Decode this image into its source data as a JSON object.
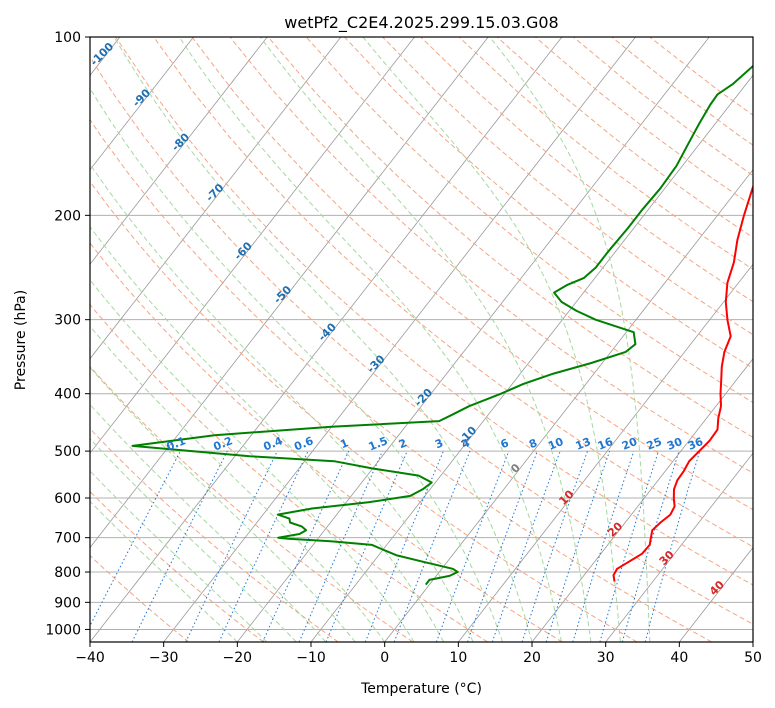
{
  "chart_data": {
    "type": "skew-t",
    "title": "wetPf2_C2E4.2025.299.15.03.G08",
    "xlabel": "Temperature (°C)",
    "ylabel": "Pressure (hPa)",
    "xlim": [
      -40,
      50
    ],
    "ylim": [
      1050,
      100
    ],
    "y_scale": "log",
    "grid": true,
    "x_ticks": [
      "−40",
      "−30",
      "−20",
      "−10",
      "0",
      "10",
      "20",
      "30",
      "40",
      "50"
    ],
    "x_tick_values": [
      -40,
      -30,
      -20,
      -10,
      0,
      10,
      20,
      30,
      40,
      50
    ],
    "y_ticks": [
      "100",
      "200",
      "300",
      "400",
      "500",
      "600",
      "700",
      "800",
      "900",
      "1000"
    ],
    "y_tick_values": [
      100,
      200,
      300,
      400,
      500,
      600,
      700,
      800,
      900,
      1000
    ],
    "series": [
      {
        "color": "#ff0000",
        "points": [
          [
            830,
            24.8
          ],
          [
            810,
            24.0
          ],
          [
            790,
            23.8
          ],
          [
            770,
            24.6
          ],
          [
            745,
            25.6
          ],
          [
            720,
            25.7
          ],
          [
            700,
            25.1
          ],
          [
            680,
            24.5
          ],
          [
            660,
            24.8
          ],
          [
            640,
            25.3
          ],
          [
            620,
            25.0
          ],
          [
            600,
            24.0
          ],
          [
            580,
            23.1
          ],
          [
            560,
            22.6
          ],
          [
            540,
            22.5
          ],
          [
            520,
            22.2
          ],
          [
            500,
            22.5
          ],
          [
            480,
            22.8
          ],
          [
            460,
            22.7
          ],
          [
            440,
            21.6
          ],
          [
            420,
            20.7
          ],
          [
            400,
            19.3
          ],
          [
            380,
            18.0
          ],
          [
            360,
            16.6
          ],
          [
            340,
            15.4
          ],
          [
            320,
            14.6
          ],
          [
            300,
            12.4
          ],
          [
            280,
            10.3
          ],
          [
            260,
            8.5
          ],
          [
            240,
            7.2
          ],
          [
            220,
            5.3
          ],
          [
            200,
            3.6
          ],
          [
            180,
            1.9
          ],
          [
            160,
            0.2
          ],
          [
            140,
            -0.8
          ],
          [
            130,
            -1.0
          ],
          [
            120,
            -0.7
          ],
          [
            113,
            0.0
          ],
          [
            108,
            0.5
          ],
          [
            100,
            0.9
          ]
        ]
      },
      {
        "color": "#008000",
        "points": [
          [
            840,
            -0.5
          ],
          [
            825,
            -0.5
          ],
          [
            812,
            1.8
          ],
          [
            800,
            2.5
          ],
          [
            790,
            1.5
          ],
          [
            770,
            -3.0
          ],
          [
            750,
            -7.5
          ],
          [
            730,
            -10.5
          ],
          [
            720,
            -12.0
          ],
          [
            710,
            -18.0
          ],
          [
            703,
            -24.0
          ],
          [
            700,
            -25.5
          ],
          [
            690,
            -23.0
          ],
          [
            680,
            -22.5
          ],
          [
            670,
            -23.5
          ],
          [
            660,
            -25.5
          ],
          [
            650,
            -26.0
          ],
          [
            640,
            -28.0
          ],
          [
            625,
            -24.0
          ],
          [
            610,
            -17.0
          ],
          [
            595,
            -12.0
          ],
          [
            580,
            -11.0
          ],
          [
            565,
            -10.5
          ],
          [
            550,
            -13.0
          ],
          [
            535,
            -20.0
          ],
          [
            520,
            -26.0
          ],
          [
            510,
            -38.0
          ],
          [
            490,
            -55.0
          ],
          [
            470,
            -45.0
          ],
          [
            455,
            -30.0
          ],
          [
            445,
            -16.0
          ],
          [
            435,
            -15.0
          ],
          [
            420,
            -13.5
          ],
          [
            400,
            -10.5
          ],
          [
            385,
            -8.5
          ],
          [
            370,
            -5.5
          ],
          [
            355,
            -1.5
          ],
          [
            340,
            2.0
          ],
          [
            330,
            2.5
          ],
          [
            315,
            1.0
          ],
          [
            308,
            -2.0
          ],
          [
            300,
            -5.5
          ],
          [
            290,
            -9.0
          ],
          [
            280,
            -12.0
          ],
          [
            270,
            -14.0
          ],
          [
            262,
            -13.0
          ],
          [
            255,
            -11.5
          ],
          [
            245,
            -11.0
          ],
          [
            230,
            -11.0
          ],
          [
            210,
            -10.8
          ],
          [
            195,
            -10.8
          ],
          [
            180,
            -10.6
          ],
          [
            165,
            -10.8
          ],
          [
            152,
            -11.5
          ],
          [
            140,
            -12.2
          ],
          [
            130,
            -12.7
          ],
          [
            125,
            -12.8
          ],
          [
            120,
            -11.8
          ],
          [
            112,
            -11.0
          ],
          [
            105,
            -10.3
          ],
          [
            100,
            -9.8
          ]
        ]
      }
    ],
    "mixing_ratio_labels": [
      "0.1",
      "0.2",
      "0.4",
      "0.6",
      "1",
      "1.5",
      "2",
      "3",
      "4",
      "6",
      "8",
      "10",
      "13",
      "16",
      "20",
      "25",
      "30",
      "36"
    ],
    "mixing_ratio_values": [
      0.1,
      0.2,
      0.4,
      0.6,
      1,
      1.5,
      2,
      3,
      4,
      6,
      8,
      10,
      13,
      16,
      20,
      25,
      30,
      36
    ],
    "moist_adiabat_labels": [
      "-100",
      "-90",
      "-80",
      "-70",
      "-60",
      "-50",
      "-40",
      "-30",
      "-20",
      "-10"
    ],
    "moist_adiabat_values": [
      -100,
      -90,
      -80,
      -70,
      -60,
      -50,
      -40,
      -30,
      -20,
      -10
    ],
    "dry_adiabat_labels": [
      "0",
      "10",
      "20",
      "30",
      "40"
    ],
    "dry_adiabat_values": [
      0,
      10,
      20,
      30,
      40
    ],
    "colors": {
      "temperature": "#ff0000",
      "dewpoint": "#008000",
      "isotherm": "#999999",
      "isobar": "#b0b0b0",
      "dry_adiabat": "#f4a582",
      "moist_adiabat": "#a6d8a0",
      "mixing_ratio": "#1f77d4",
      "moist_label": "#1f6fb2",
      "dry_label": "#d62728",
      "zero_label": "#7f7f7f"
    }
  }
}
